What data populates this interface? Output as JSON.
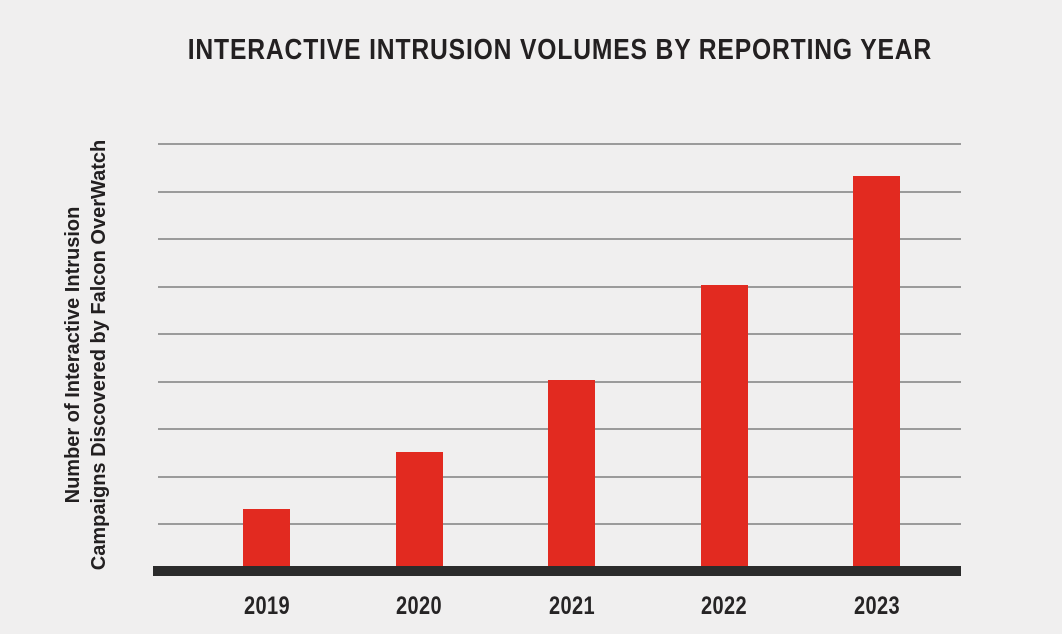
{
  "page": {
    "background_color": "#f0efef",
    "text_color": "#232021"
  },
  "chart": {
    "title": "INTERACTIVE INTRUSION VOLUMES BY REPORTING YEAR",
    "y_axis_label_line1": "Number of Interactive Intrusion",
    "y_axis_label_line2": "Campaigns Discovered by Falcon OverWatch",
    "colors": {
      "bar": "#e22a20",
      "gridline": "#9b9b9b",
      "axis_line": "#2b2b2b",
      "text": "#232021"
    }
  },
  "chart_data": {
    "type": "bar",
    "title": "INTERACTIVE INTRUSION VOLUMES BY REPORTING YEAR",
    "ylabel": "Number of Interactive Intrusion Campaigns Discovered by Falcon OverWatch",
    "xlabel": "",
    "categories": [
      "2019",
      "2020",
      "2021",
      "2022",
      "2023"
    ],
    "values": [
      1.3,
      2.5,
      4.0,
      6.0,
      8.3
    ],
    "units": "relative-gridline-units (y axis has no numeric tick labels)",
    "ylim": [
      0,
      9.4
    ],
    "gridline_count": 9,
    "grid": "horizontal",
    "legend": false,
    "bar_color": "#e22a20"
  }
}
